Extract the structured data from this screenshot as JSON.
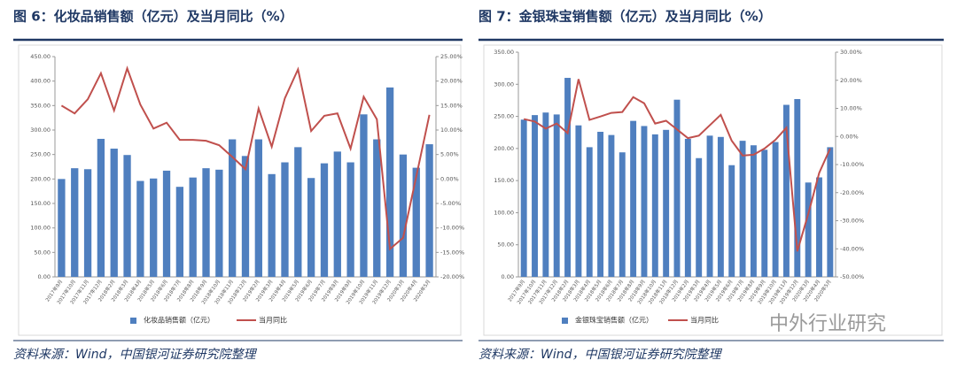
{
  "chart_data": [
    {
      "type": "bar",
      "title": "图 6：化妆品销售额（亿元）及当月同比（%）",
      "source": "资料来源：Wind，中国银河证券研究院整理",
      "categories": [
        "2017年9月",
        "2017年10月",
        "2017年11月",
        "2017年12月",
        "2018年2月",
        "2018年3月",
        "2018年4月",
        "2018年5月",
        "2018年6月",
        "2018年7月",
        "2018年8月",
        "2018年9月",
        "2018年10月",
        "2018年11月",
        "2018年12月",
        "2019年2月",
        "2019年3月",
        "2019年4月",
        "2019年5月",
        "2019年6月",
        "2019年7月",
        "2019年8月",
        "2019年9月",
        "2019年10月",
        "2019年11月",
        "2019年12月",
        "2020年3月",
        "2020年4月",
        "2020年5月"
      ],
      "series": [
        {
          "name": "化妆品销售额（亿元）",
          "type": "bar",
          "color": "#4f7fbf",
          "axis": "y",
          "values": [
            200,
            222,
            220,
            282,
            262,
            249,
            196,
            201,
            217,
            184,
            203,
            222,
            219,
            281,
            247,
            281,
            210,
            234,
            265,
            202,
            232,
            256,
            234,
            332,
            281,
            387,
            250,
            223,
            271
          ]
        },
        {
          "name": "当月同比",
          "type": "line",
          "color": "#c0504d",
          "axis": "y2",
          "values": [
            15.0,
            13.4,
            16.3,
            21.6,
            14.0,
            22.6,
            15.2,
            10.3,
            11.5,
            8.0,
            8.0,
            7.8,
            6.9,
            4.5,
            2.0,
            14.4,
            6.6,
            16.5,
            22.4,
            9.8,
            12.9,
            13.4,
            6.2,
            16.8,
            12.2,
            -14.3,
            -12.0,
            0.5,
            13.1
          ]
        }
      ],
      "ylim": [
        0,
        450
      ],
      "yticks": [
        {
          "value": 0,
          "label": "0.00"
        },
        {
          "value": 50,
          "label": "50.00"
        },
        {
          "value": 100,
          "label": "100.00"
        },
        {
          "value": 150,
          "label": "150.00"
        },
        {
          "value": 200,
          "label": "200.00"
        },
        {
          "value": 250,
          "label": "250.00"
        },
        {
          "value": 300,
          "label": "300.00"
        },
        {
          "value": 350,
          "label": "350.00"
        },
        {
          "value": 400,
          "label": "400.00"
        },
        {
          "value": 450,
          "label": "450.00"
        }
      ],
      "y2lim": [
        -20,
        25
      ],
      "y2ticks": [
        {
          "value": -20,
          "label": "-20.00%"
        },
        {
          "value": -15,
          "label": "-15.00%"
        },
        {
          "value": -10,
          "label": "-10.00%"
        },
        {
          "value": -5,
          "label": "-5.00%"
        },
        {
          "value": 0,
          "label": "0.00%"
        },
        {
          "value": 5,
          "label": "5.00%"
        },
        {
          "value": 10,
          "label": "10.00%"
        },
        {
          "value": 15,
          "label": "15.00%"
        },
        {
          "value": 20,
          "label": "20.00%"
        },
        {
          "value": 25,
          "label": "25.00%"
        }
      ],
      "legend": "bottom"
    },
    {
      "type": "bar",
      "title": "图 7：金银珠宝销售额（亿元）及当月同比（%）",
      "source": "资料来源：Wind，中国银河证券研究院整理",
      "categories": [
        "2017年9月",
        "2017年10月",
        "2017年11月",
        "2017年12月",
        "2018年2月",
        "2018年3月",
        "2018年4月",
        "2018年5月",
        "2018年6月",
        "2018年7月",
        "2018年8月",
        "2018年9月",
        "2018年10月",
        "2018年11月",
        "2018年12月",
        "2019年2月",
        "2019年3月",
        "2019年4月",
        "2019年5月",
        "2019年6月",
        "2019年7月",
        "2019年8月",
        "2019年9月",
        "2019年10月",
        "2019年11月",
        "2019年12月",
        "2020年3月",
        "2020年4月",
        "2020年5月"
      ],
      "series": [
        {
          "name": "金银珠宝销售额（亿元）",
          "type": "bar",
          "color": "#4f7fbf",
          "axis": "y",
          "values": [
            245,
            252,
            256,
            253,
            310,
            236,
            202,
            226,
            221,
            194,
            243,
            235,
            222,
            229,
            276,
            215,
            185,
            220,
            218,
            174,
            212,
            205,
            198,
            210,
            268,
            277,
            147,
            155,
            202
          ]
        },
        {
          "name": "当月同比",
          "type": "line",
          "color": "#c0504d",
          "axis": "y2",
          "values": [
            6.2,
            5.3,
            2.8,
            4.6,
            1.2,
            20.4,
            5.9,
            7.1,
            8.4,
            8.7,
            14.0,
            11.8,
            4.6,
            5.6,
            2.5,
            -0.6,
            0.3,
            4.0,
            7.7,
            -1.5,
            -6.8,
            -6.5,
            -4.3,
            -1.2,
            3.1,
            -40.9,
            -27.6,
            -13.0,
            -4.3
          ]
        }
      ],
      "ylim": [
        0,
        350
      ],
      "yticks": [
        {
          "value": 0,
          "label": "0.00"
        },
        {
          "value": 50,
          "label": "50.00"
        },
        {
          "value": 100,
          "label": "100.00"
        },
        {
          "value": 150,
          "label": "150.00"
        },
        {
          "value": 200,
          "label": "200.00"
        },
        {
          "value": 250,
          "label": "250.00"
        },
        {
          "value": 300,
          "label": "300.00"
        },
        {
          "value": 350,
          "label": "350.00"
        }
      ],
      "y2lim": [
        -50,
        30
      ],
      "y2ticks": [
        {
          "value": -50,
          "label": "-50.00%"
        },
        {
          "value": -40,
          "label": "-40.00%"
        },
        {
          "value": -30,
          "label": "-30.00%"
        },
        {
          "value": -20,
          "label": "-20.00%"
        },
        {
          "value": -10,
          "label": "-10.00%"
        },
        {
          "value": 0,
          "label": "0.00%"
        },
        {
          "value": 10,
          "label": "10.00%"
        },
        {
          "value": 20,
          "label": "20.00%"
        },
        {
          "value": 30,
          "label": "30.00%"
        }
      ],
      "legend": "bottom"
    }
  ],
  "watermark": "中外行业研究"
}
